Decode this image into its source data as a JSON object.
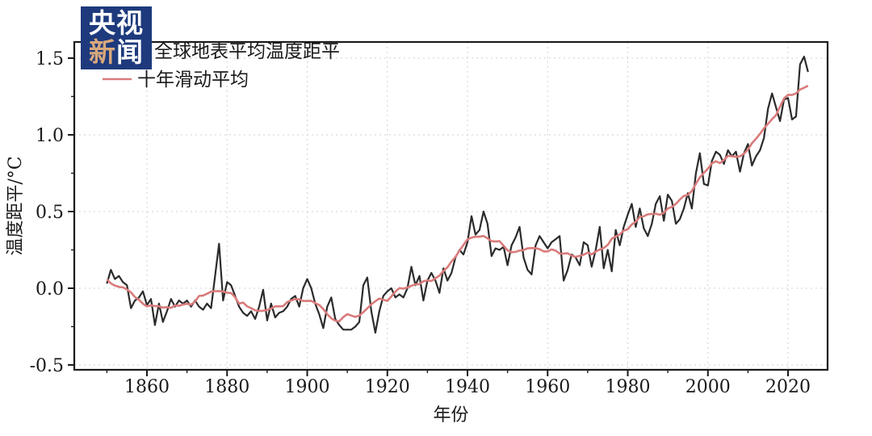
{
  "logo": {
    "line1": "央视",
    "line2_char1": "新",
    "line2_char2": "闻"
  },
  "colors": {
    "logo_bg": "#1e3a7d",
    "logo_accent": "#d8a87c",
    "annual_line": "#2b2b2b",
    "moving_avg_line": "#d97b7b",
    "grid": "#d2d2d2",
    "axis": "#1a1a1a"
  },
  "chart_data": {
    "type": "line",
    "title": "",
    "xlabel": "年份",
    "ylabel": "温度距平/°C",
    "start_year": 1850,
    "end_year": 2025,
    "xlim": [
      1842,
      2030
    ],
    "ylim": [
      -0.53,
      1.6
    ],
    "x_major_ticks": [
      1860,
      1880,
      1900,
      1920,
      1940,
      1960,
      1980,
      2000,
      2020
    ],
    "x_minor_ticks": [
      1850,
      1870,
      1890,
      1910,
      1930,
      1950,
      1970,
      1990,
      2010
    ],
    "y_major_ticks": [
      -0.5,
      0.0,
      0.5,
      1.0,
      1.5
    ],
    "y_minor_ticks": [
      -0.25,
      0.25,
      0.75,
      1.25
    ],
    "grid": "dashed lines on major ticks",
    "legend_position": "top-left",
    "series": [
      {
        "name": "全球地表平均温度距平",
        "kind": "annual",
        "color": "#2b2b2b",
        "values": [
          0.03,
          0.12,
          0.06,
          0.08,
          0.04,
          0.02,
          -0.13,
          -0.08,
          -0.06,
          -0.02,
          -0.11,
          -0.07,
          -0.24,
          -0.1,
          -0.22,
          -0.15,
          -0.07,
          -0.12,
          -0.08,
          -0.1,
          -0.08,
          -0.12,
          -0.08,
          -0.12,
          -0.14,
          -0.1,
          -0.13,
          0.08,
          0.29,
          -0.08,
          0.04,
          0.02,
          -0.05,
          -0.12,
          -0.16,
          -0.18,
          -0.15,
          -0.2,
          -0.12,
          -0.01,
          -0.21,
          -0.1,
          -0.19,
          -0.16,
          -0.15,
          -0.12,
          -0.07,
          -0.05,
          -0.12,
          0.0,
          0.06,
          0.0,
          -0.1,
          -0.17,
          -0.26,
          -0.12,
          -0.06,
          -0.2,
          -0.24,
          -0.27,
          -0.27,
          -0.27,
          -0.25,
          -0.22,
          0.02,
          0.07,
          -0.15,
          -0.29,
          -0.15,
          -0.05,
          -0.02,
          0.0,
          -0.06,
          -0.04,
          -0.06,
          0.0,
          0.14,
          0.02,
          0.08,
          -0.08,
          0.05,
          0.1,
          0.05,
          -0.03,
          0.13,
          0.05,
          0.1,
          0.2,
          0.25,
          0.22,
          0.3,
          0.47,
          0.35,
          0.38,
          0.5,
          0.42,
          0.21,
          0.26,
          0.25,
          0.27,
          0.15,
          0.28,
          0.33,
          0.4,
          0.2,
          0.12,
          0.09,
          0.28,
          0.34,
          0.3,
          0.26,
          0.3,
          0.32,
          0.34,
          0.05,
          0.12,
          0.22,
          0.2,
          0.15,
          0.3,
          0.28,
          0.14,
          0.25,
          0.4,
          0.13,
          0.25,
          0.11,
          0.38,
          0.28,
          0.4,
          0.48,
          0.55,
          0.4,
          0.52,
          0.39,
          0.34,
          0.42,
          0.55,
          0.6,
          0.44,
          0.61,
          0.57,
          0.42,
          0.45,
          0.52,
          0.62,
          0.52,
          0.75,
          0.88,
          0.68,
          0.67,
          0.83,
          0.89,
          0.87,
          0.81,
          0.9,
          0.86,
          0.89,
          0.76,
          0.88,
          0.94,
          0.8,
          0.86,
          0.9,
          0.98,
          1.17,
          1.27,
          1.18,
          1.09,
          1.23,
          1.24,
          1.1,
          1.12,
          1.46,
          1.51,
          1.41
        ]
      },
      {
        "name": "十年滑动平均",
        "kind": "moving_average",
        "color": "#d97b7b",
        "derived": "10-year centered moving average of the annual series"
      }
    ]
  }
}
